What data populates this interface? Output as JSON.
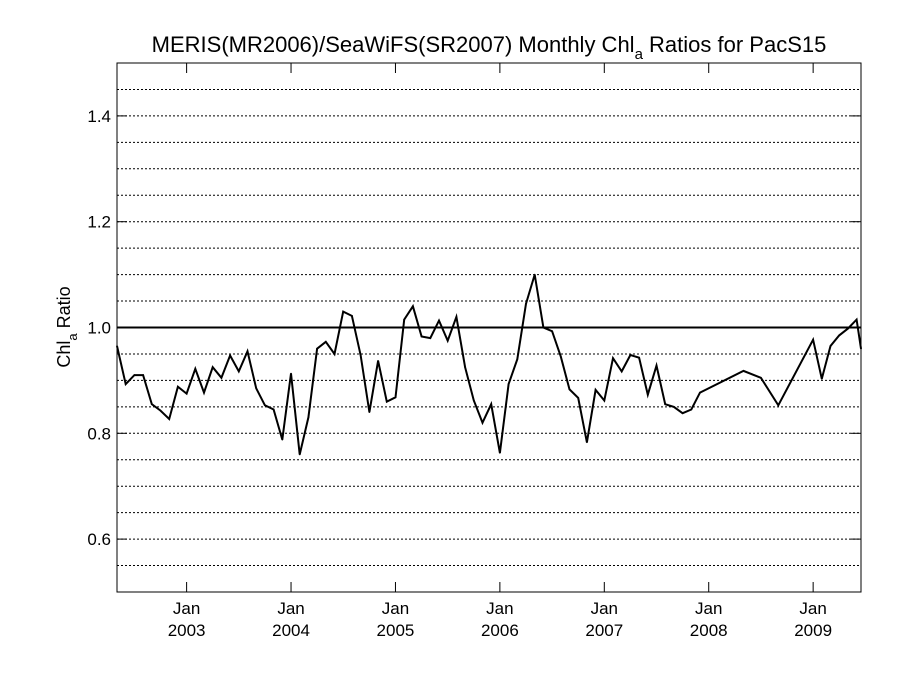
{
  "chart_data": {
    "type": "line",
    "title": {
      "pre": "MERIS(MR2006)/SeaWiFS(SR2007) Monthly Chl",
      "sub": "a",
      "post": " Ratios for PacS15"
    },
    "ylabel": {
      "pre": "Chl",
      "sub": "a",
      "post": " Ratio"
    },
    "xlabel": "",
    "ylim": [
      0.5,
      1.5
    ],
    "yticks": [
      0.6,
      0.8,
      1.0,
      1.2,
      1.4
    ],
    "ytick_labels": [
      "0.6",
      "0.8",
      "1.0",
      "1.2",
      "1.4"
    ],
    "ygrid_step": 0.05,
    "grid": "horizontal dotted",
    "reference_line": 1.0,
    "xlim": [
      "2002-05",
      "2009-06"
    ],
    "xticks": [
      {
        "month": "Jan",
        "year": "2003",
        "date": "2003-01"
      },
      {
        "month": "Jan",
        "year": "2004",
        "date": "2004-01"
      },
      {
        "month": "Jan",
        "year": "2005",
        "date": "2005-01"
      },
      {
        "month": "Jan",
        "year": "2006",
        "date": "2006-01"
      },
      {
        "month": "Jan",
        "year": "2007",
        "date": "2007-01"
      },
      {
        "month": "Jan",
        "year": "2008",
        "date": "2008-01"
      },
      {
        "month": "Jan",
        "year": "2009",
        "date": "2009-01"
      }
    ],
    "series": [
      {
        "color": "#000000",
        "points": [
          [
            "2002-05",
            0.965
          ],
          [
            "2002-06",
            0.893
          ],
          [
            "2002-07",
            0.91
          ],
          [
            "2002-08",
            0.91
          ],
          [
            "2002-09",
            0.855
          ],
          [
            "2002-10",
            0.843
          ],
          [
            "2002-11",
            0.827
          ],
          [
            "2002-12",
            0.888
          ],
          [
            "2003-01",
            0.875
          ],
          [
            "2003-02",
            0.922
          ],
          [
            "2003-03",
            0.877
          ],
          [
            "2003-04",
            0.925
          ],
          [
            "2003-05",
            0.905
          ],
          [
            "2003-06",
            0.947
          ],
          [
            "2003-07",
            0.917
          ],
          [
            "2003-08",
            0.955
          ],
          [
            "2003-09",
            0.885
          ],
          [
            "2003-10",
            0.853
          ],
          [
            "2003-11",
            0.845
          ],
          [
            "2003-12",
            0.788
          ],
          [
            "2004-01",
            0.913
          ],
          [
            "2004-02",
            0.76
          ],
          [
            "2004-03",
            0.83
          ],
          [
            "2004-04",
            0.96
          ],
          [
            "2004-05",
            0.973
          ],
          [
            "2004-06",
            0.95
          ],
          [
            "2004-07",
            1.03
          ],
          [
            "2004-08",
            1.022
          ],
          [
            "2004-09",
            0.948
          ],
          [
            "2004-10",
            0.84
          ],
          [
            "2004-11",
            0.937
          ],
          [
            "2004-12",
            0.86
          ],
          [
            "2005-01",
            0.868
          ],
          [
            "2005-02",
            1.015
          ],
          [
            "2005-03",
            1.04
          ],
          [
            "2005-04",
            0.983
          ],
          [
            "2005-05",
            0.98
          ],
          [
            "2005-06",
            1.013
          ],
          [
            "2005-07",
            0.975
          ],
          [
            "2005-08",
            1.02
          ],
          [
            "2005-09",
            0.925
          ],
          [
            "2005-10",
            0.862
          ],
          [
            "2005-11",
            0.82
          ],
          [
            "2005-12",
            0.855
          ],
          [
            "2006-01",
            0.763
          ],
          [
            "2006-02",
            0.893
          ],
          [
            "2006-03",
            0.94
          ],
          [
            "2006-04",
            1.045
          ],
          [
            "2006-05",
            1.1
          ],
          [
            "2006-06",
            1.0
          ],
          [
            "2006-07",
            0.993
          ],
          [
            "2006-08",
            0.945
          ],
          [
            "2006-09",
            0.883
          ],
          [
            "2006-10",
            0.867
          ],
          [
            "2006-11",
            0.783
          ],
          [
            "2006-12",
            0.882
          ],
          [
            "2007-01",
            0.862
          ],
          [
            "2007-02",
            0.942
          ],
          [
            "2007-03",
            0.917
          ],
          [
            "2007-04",
            0.948
          ],
          [
            "2007-05",
            0.943
          ],
          [
            "2007-06",
            0.873
          ],
          [
            "2007-07",
            0.928
          ],
          [
            "2007-08",
            0.855
          ],
          [
            "2007-09",
            0.85
          ],
          [
            "2007-10",
            0.838
          ],
          [
            "2007-11",
            0.845
          ],
          [
            "2007-12",
            0.877
          ],
          [
            "2008-05",
            0.918
          ],
          [
            "2008-07",
            0.905
          ],
          [
            "2008-09",
            0.853
          ],
          [
            "2009-01",
            0.977
          ],
          [
            "2009-02",
            0.903
          ],
          [
            "2009-03",
            0.965
          ],
          [
            "2009-04",
            0.985
          ],
          [
            "2009-05",
            0.998
          ],
          [
            "2009-06",
            1.015
          ],
          [
            "2009-06.5",
            0.96
          ]
        ]
      }
    ]
  }
}
